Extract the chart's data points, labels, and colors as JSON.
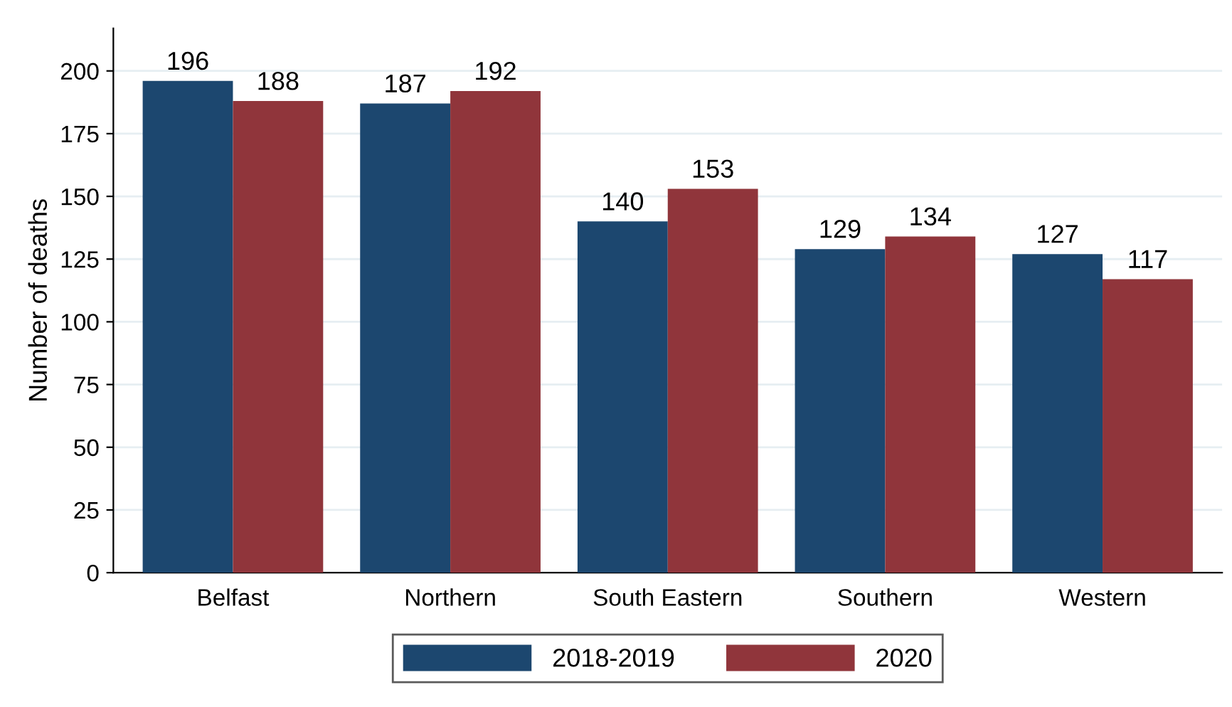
{
  "chart_data": {
    "type": "bar",
    "ylabel": "Number of deaths",
    "categories": [
      "Belfast",
      "Northern",
      "South Eastern",
      "Southern",
      "Western"
    ],
    "series": [
      {
        "name": "2018-2019",
        "color": "#1c476f",
        "values": [
          196,
          187,
          140,
          129,
          127
        ]
      },
      {
        "name": "2020",
        "color": "#90353b",
        "values": [
          188,
          192,
          153,
          134,
          117
        ]
      }
    ],
    "ylim": [
      0,
      217
    ],
    "yticks": [
      0,
      25,
      50,
      75,
      100,
      125,
      150,
      175,
      200
    ],
    "grid": "y",
    "legend": "bottom",
    "data_labels": true
  }
}
